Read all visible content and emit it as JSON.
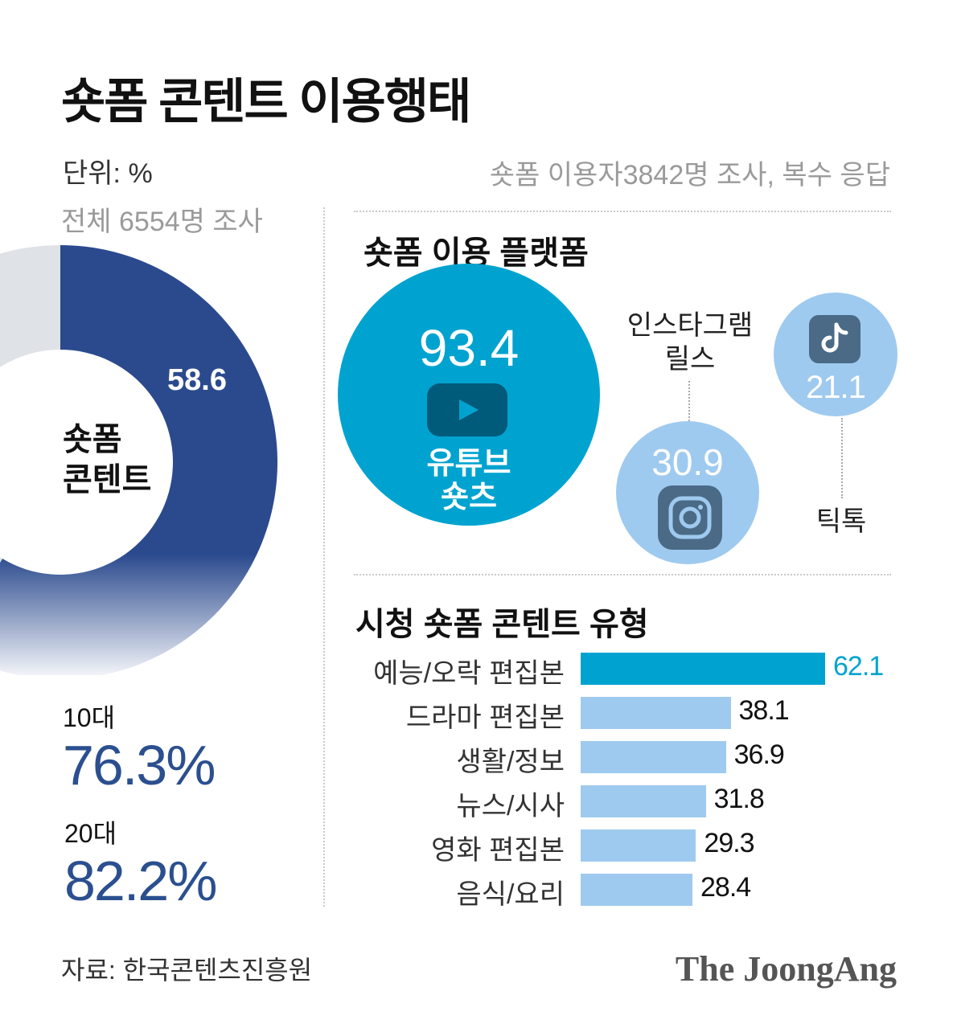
{
  "title": "숏폼 콘텐트 이용행태",
  "unit": "단위: %",
  "left_survey": "전체 6554명 조사",
  "right_survey": "숏폼 이용자3842명 조사, 복수 응답",
  "donut": {
    "label_line1": "숏폼",
    "label_line2": "콘텐트",
    "value": 58.6,
    "value_text": "58.6"
  },
  "age_stats": [
    {
      "label": "10대",
      "value": "76.3%"
    },
    {
      "label": "20대",
      "value": "82.2%"
    }
  ],
  "platforms": {
    "title": "숏폼 이용 플랫폼",
    "youtube": {
      "value": "93.4",
      "name_line1": "유튜브",
      "name_line2": "숏츠",
      "icon": "youtube-play-icon"
    },
    "instagram": {
      "value": "30.9",
      "name_line1": "인스타그램",
      "name_line2": "릴스",
      "icon": "instagram-icon"
    },
    "tiktok": {
      "value": "21.1",
      "name": "틱톡",
      "icon": "tiktok-icon"
    }
  },
  "content_types": {
    "title": "시청 숏폼 콘텐트 유형"
  },
  "chart_data": [
    {
      "type": "pie",
      "title": "",
      "categories": [
        "숏폼 콘텐트",
        ""
      ],
      "values": [
        58.6,
        41.4
      ],
      "colors": [
        "#2b4a8e",
        "#dfe2e6"
      ]
    },
    {
      "type": "bubble",
      "title": "숏폼 이용 플랫폼",
      "categories": [
        "유튜브 숏츠",
        "인스타그램 릴스",
        "틱톡"
      ],
      "values": [
        93.4,
        30.9,
        21.1
      ],
      "colors": [
        "#00a3d0",
        "#9fcaef",
        "#9fcaef"
      ]
    },
    {
      "type": "bar",
      "orientation": "horizontal",
      "title": "시청 숏폼 콘텐트 유형",
      "categories": [
        "예능/오락 편집본",
        "드라마 편집본",
        "생활/정보",
        "뉴스/시사",
        "영화 편집본",
        "음식/요리"
      ],
      "values": [
        62.1,
        38.1,
        36.9,
        31.8,
        29.3,
        28.4
      ],
      "value_labels": [
        "62.1",
        "38.1",
        "36.9",
        "31.8",
        "29.3",
        "28.4"
      ],
      "highlight_color": "#00a3d0",
      "bar_color": "#9fcaef",
      "xlim": [
        0,
        62.1
      ]
    }
  ],
  "source": "자료: 한국콘텐츠진흥원",
  "brand": "The JoongAng"
}
